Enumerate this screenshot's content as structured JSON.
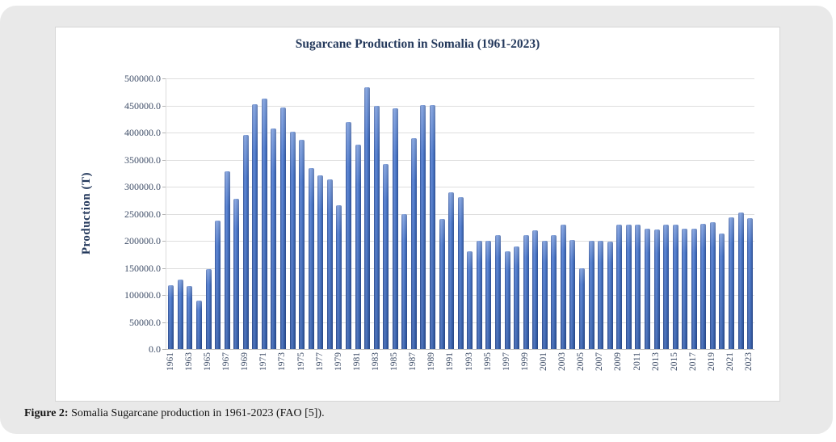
{
  "figure": {
    "caption_label": "Figure 2:",
    "caption_text": " Somalia Sugarcane production in 1961-2023 (FAO [5])."
  },
  "colors": {
    "panel_bg": "#e9e9e9",
    "card_bg": "#ffffff",
    "card_border": "#d6d6d6",
    "bar_accent": "#4472C4",
    "title_text": "#24395c",
    "tick_text": "#3f4e68",
    "gridline": "#dedede"
  },
  "chart_data": {
    "type": "bar",
    "title": "Sugarcane Production in Somalia (1961-2023)",
    "xlabel": "",
    "ylabel": "Production (T)",
    "ylim": [
      0,
      500000
    ],
    "ytick_step": 50000,
    "grid": true,
    "legend": false,
    "y_tick_labels": [
      "500000.0",
      "450000.0",
      "400000.0",
      "350000.0",
      "300000.0",
      "250000.0",
      "200000.0",
      "150000.0",
      "100000.0",
      "50000.0",
      "0.0"
    ],
    "x_tick_labels": [
      "1961",
      "1963",
      "1965",
      "1967",
      "1969",
      "1971",
      "1973",
      "1975",
      "1977",
      "1979",
      "1981",
      "1983",
      "1985",
      "1987",
      "1989",
      "1991",
      "1993",
      "1995",
      "1997",
      "1999",
      "2001",
      "2003",
      "2005",
      "2007",
      "2009",
      "2011",
      "2013",
      "2015",
      "2017",
      "2019",
      "2021",
      "2023"
    ],
    "categories": [
      1961,
      1962,
      1963,
      1964,
      1965,
      1966,
      1967,
      1968,
      1969,
      1970,
      1971,
      1972,
      1973,
      1974,
      1975,
      1976,
      1977,
      1978,
      1979,
      1980,
      1981,
      1982,
      1983,
      1984,
      1985,
      1986,
      1987,
      1988,
      1989,
      1990,
      1991,
      1992,
      1993,
      1994,
      1995,
      1996,
      1997,
      1998,
      1999,
      2000,
      2001,
      2002,
      2003,
      2004,
      2005,
      2006,
      2007,
      2008,
      2009,
      2010,
      2011,
      2012,
      2013,
      2014,
      2015,
      2016,
      2017,
      2018,
      2019,
      2020,
      2021,
      2022,
      2023
    ],
    "values": [
      118000,
      128000,
      117000,
      90000,
      148000,
      238000,
      328000,
      277000,
      395000,
      453000,
      463000,
      408000,
      446000,
      401000,
      386000,
      334000,
      321000,
      313000,
      265000,
      420000,
      378000,
      484000,
      450000,
      342000,
      445000,
      250000,
      390000,
      451000,
      451000,
      240000,
      290000,
      280000,
      180000,
      200000,
      200000,
      210000,
      180000,
      190000,
      211000,
      220000,
      200000,
      211000,
      230000,
      202000,
      149000,
      200000,
      200000,
      199000,
      230000,
      230000,
      230000,
      222000,
      221000,
      230000,
      230000,
      222000,
      222000,
      231000,
      234000,
      214000,
      243000,
      253000,
      242000
    ]
  }
}
